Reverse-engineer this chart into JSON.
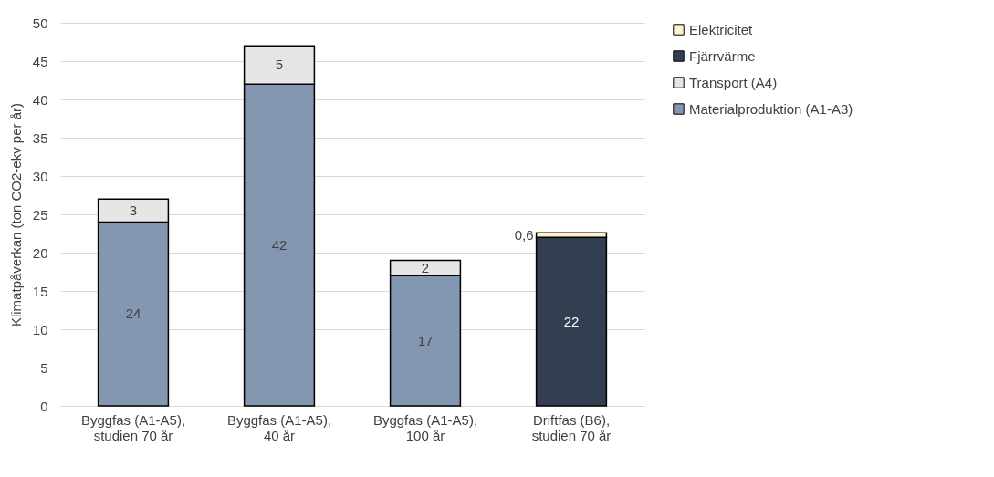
{
  "chart_data": {
    "type": "bar",
    "stacked": true,
    "ylabel": "Klimatpåverkan (ton CO2-ekv per år)",
    "categories": [
      "Byggfas (A1-A5), studien 70 år",
      "Byggfas (A1-A5), 40 år",
      "Byggfas (A1-A5), 100 år",
      "Driftfas (B6), studien 70 år"
    ],
    "series": [
      {
        "name": "Materialproduktion (A1-A3)",
        "color": "#8497b0",
        "values": [
          24,
          42,
          17,
          null
        ],
        "value_labels": [
          "24",
          "42",
          "17",
          null
        ]
      },
      {
        "name": "Transport (A4)",
        "color": "#e7e6e6",
        "values": [
          3,
          5,
          2,
          null
        ],
        "value_labels": [
          "3",
          "5",
          "2",
          null
        ]
      },
      {
        "name": "Fjärrvärme",
        "color": "#333f50",
        "values": [
          null,
          null,
          null,
          22
        ],
        "value_labels": [
          null,
          null,
          null,
          "22"
        ]
      },
      {
        "name": "Elektricitet",
        "color": "#fff2cc",
        "values": [
          null,
          null,
          null,
          0.6
        ],
        "value_labels": [
          null,
          null,
          null,
          "0,6"
        ]
      }
    ],
    "ylim": [
      0,
      50
    ],
    "yticks": [
      0,
      5,
      10,
      15,
      20,
      25,
      30,
      35,
      40,
      45,
      50
    ],
    "grid": "y",
    "legend": "right"
  }
}
